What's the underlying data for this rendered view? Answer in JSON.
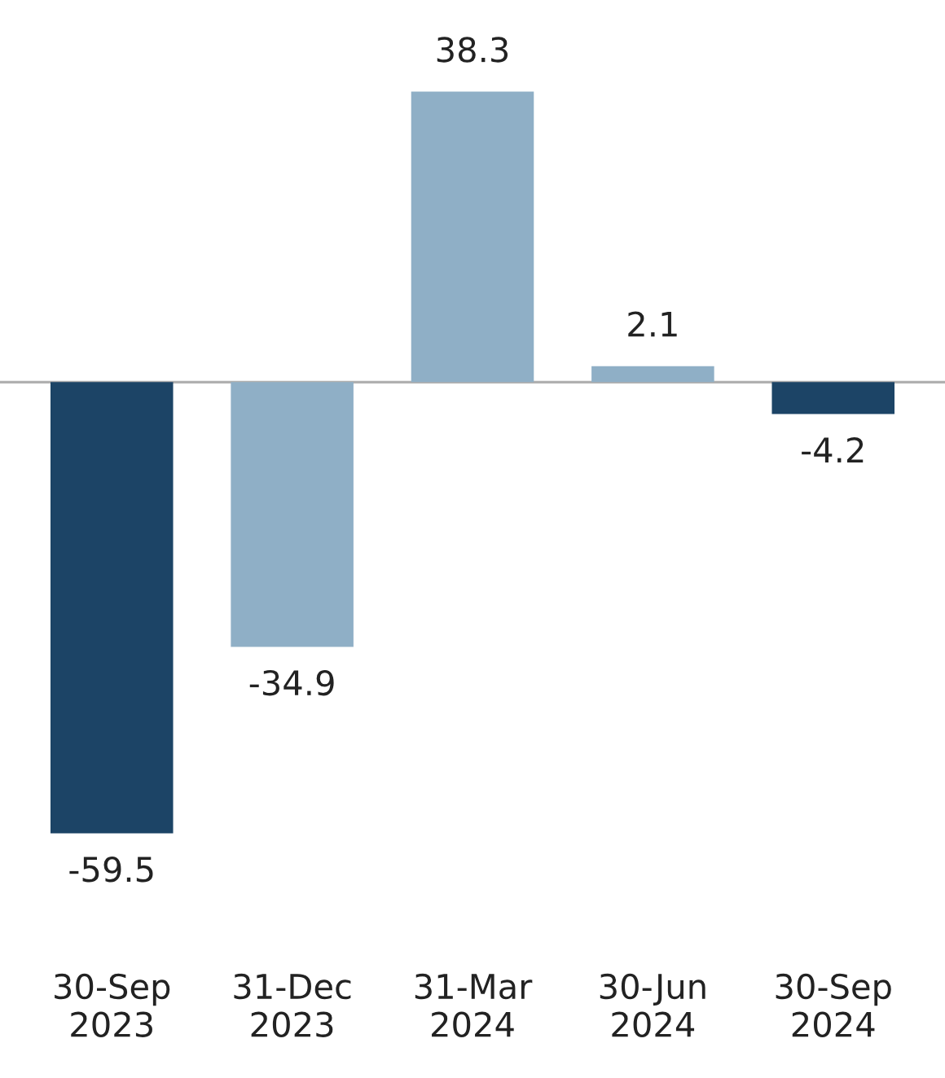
{
  "chart_data": {
    "type": "bar",
    "categories": [
      "30-Sep\n2023",
      "31-Dec\n2023",
      "31-Mar\n2024",
      "30-Jun\n2024",
      "30-Sep\n2024"
    ],
    "values": [
      -59.5,
      -34.9,
      38.3,
      2.1,
      -4.2
    ],
    "colors": [
      "#1c4466",
      "#8fafc6",
      "#8fafc6",
      "#8fafc6",
      "#1c4466"
    ],
    "data_labels": true,
    "grid": false
  }
}
